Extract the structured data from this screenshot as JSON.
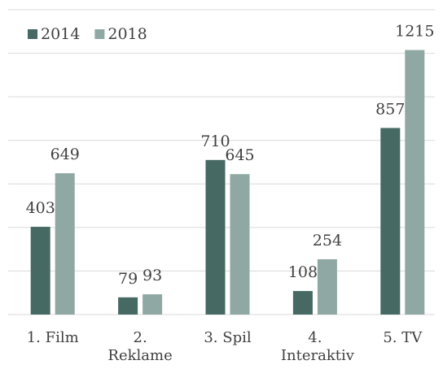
{
  "chart_data": {
    "type": "bar",
    "categories": [
      "1. Film",
      "2. Reklame",
      "3. Spil",
      "4. Interaktiv",
      "5. TV"
    ],
    "series": [
      {
        "name": "2014",
        "color": "#466964",
        "values": [
          403,
          79,
          710,
          108,
          857
        ]
      },
      {
        "name": "2018",
        "color": "#8fa8a3",
        "values": [
          649,
          93,
          645,
          254,
          1215
        ]
      }
    ],
    "ylim": [
      0,
      1400
    ],
    "yticks": [
      0,
      200,
      400,
      600,
      800,
      1000,
      1200,
      1400
    ],
    "grid": true,
    "legend": "top-left"
  }
}
